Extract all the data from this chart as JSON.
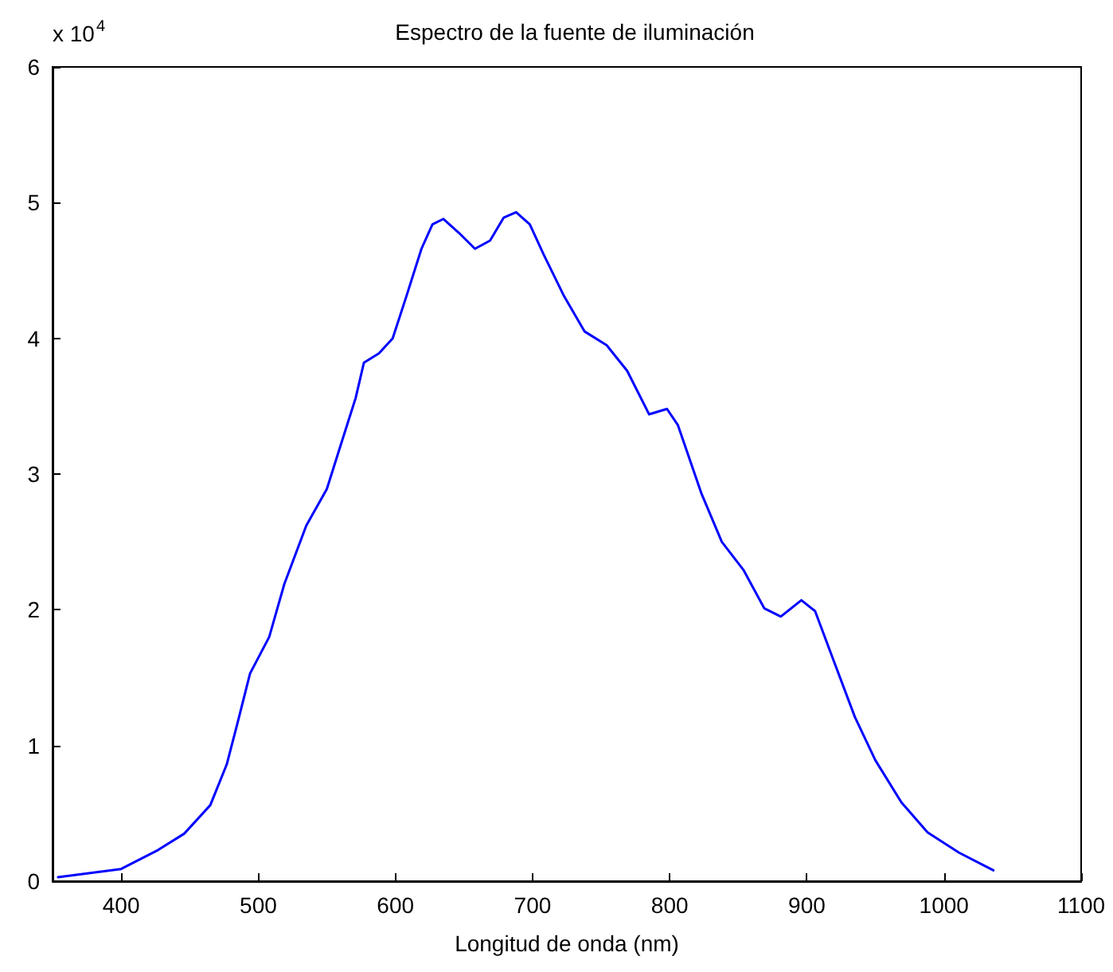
{
  "chart_data": {
    "type": "line",
    "title": "Espectro de la fuente de iluminación",
    "xlabel": "Longitud de onda (nm)",
    "annotations": [
      "x 10$^{4}$"
    ],
    "x": [
      354,
      400,
      427,
      446,
      465,
      477,
      485,
      494,
      508,
      519,
      535,
      550,
      560,
      571,
      577,
      588,
      598,
      608,
      619,
      627,
      635,
      646,
      658,
      669,
      679,
      688,
      698,
      708,
      723,
      738,
      754,
      769,
      785,
      798,
      806,
      823,
      838,
      854,
      869,
      881,
      896,
      906,
      919,
      935,
      950,
      969,
      988,
      1011,
      1036
    ],
    "series": [
      {
        "color": "#0000ff",
        "values": [
          0.03,
          0.09,
          0.23,
          0.35,
          0.56,
          0.86,
          1.17,
          1.53,
          1.8,
          2.19,
          2.62,
          2.89,
          3.21,
          3.56,
          3.82,
          3.89,
          4.0,
          4.31,
          4.66,
          4.84,
          4.88,
          4.78,
          4.66,
          4.72,
          4.89,
          4.93,
          4.84,
          4.62,
          4.31,
          4.05,
          3.95,
          3.76,
          3.44,
          3.48,
          3.36,
          2.86,
          2.5,
          2.29,
          2.01,
          1.95,
          2.07,
          1.99,
          1.64,
          1.21,
          0.89,
          0.58,
          0.36,
          0.21,
          0.08
        ]
      }
    ],
    "xlim": [
      350,
      1100
    ],
    "xticks": [
      400,
      500,
      600,
      700,
      800,
      900,
      1000,
      1100
    ],
    "ylim": [
      0,
      6
    ],
    "yticks": [
      0,
      1,
      2,
      3,
      4,
      5,
      6
    ],
    "grid": false,
    "marker": "none",
    "line_style": "solid"
  }
}
